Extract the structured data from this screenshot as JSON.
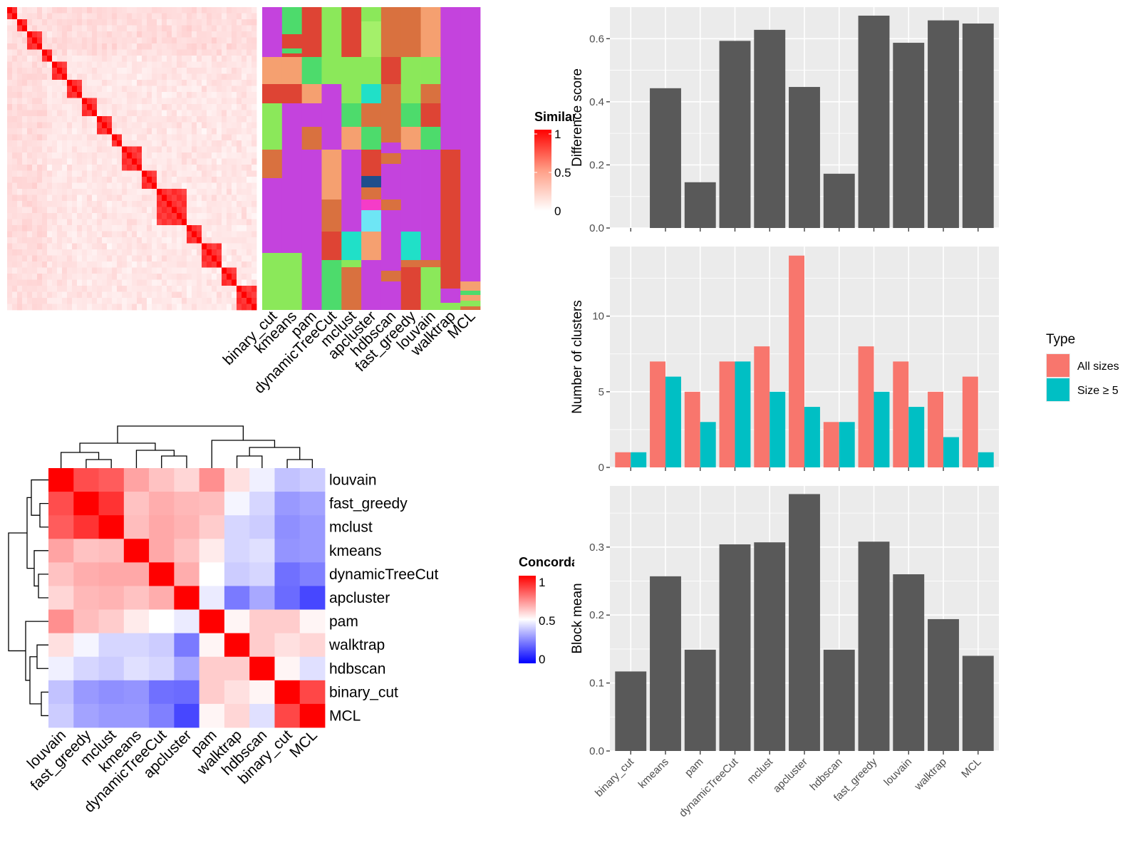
{
  "colors": {
    "panel_bg": "#ebebeb",
    "grid": "#ffffff",
    "bar_dark": "#595959",
    "all_sizes": "#f8766d",
    "size_ge5": "#00bfc4",
    "heat_high": "#ff0000",
    "heat_mid": "#ffffff",
    "heat_low": "#0000ff"
  },
  "similarity_heatmap": {
    "legend_title": "Similarity",
    "legend_ticks": [
      "1",
      "0.5",
      "0"
    ],
    "n": 50
  },
  "assignment_heatmap": {
    "columns": [
      "binary_cut",
      "kmeans",
      "pam",
      "dynamicTreeCut",
      "mclust",
      "apcluster",
      "hdbscan",
      "fast_greedy",
      "louvain",
      "walktrap",
      "MCL"
    ]
  },
  "concordance_heatmap": {
    "legend_title": "Concordance",
    "legend_ticks": [
      "1",
      "0.5",
      "0"
    ],
    "methods": [
      "louvain",
      "fast_greedy",
      "mclust",
      "kmeans",
      "dynamicTreeCut",
      "apcluster",
      "pam",
      "walktrap",
      "hdbscan",
      "binary_cut",
      "MCL"
    ],
    "matrix": [
      [
        1.0,
        0.85,
        0.82,
        0.68,
        0.62,
        0.58,
        0.72,
        0.56,
        0.47,
        0.38,
        0.4
      ],
      [
        0.85,
        1.0,
        0.9,
        0.62,
        0.66,
        0.64,
        0.63,
        0.48,
        0.42,
        0.3,
        0.32
      ],
      [
        0.82,
        0.9,
        1.0,
        0.63,
        0.67,
        0.65,
        0.6,
        0.42,
        0.4,
        0.28,
        0.3
      ],
      [
        0.68,
        0.62,
        0.63,
        1.0,
        0.67,
        0.62,
        0.54,
        0.42,
        0.44,
        0.29,
        0.3
      ],
      [
        0.62,
        0.66,
        0.67,
        0.67,
        1.0,
        0.66,
        0.5,
        0.4,
        0.42,
        0.22,
        0.25
      ],
      [
        0.58,
        0.64,
        0.65,
        0.62,
        0.66,
        1.0,
        0.46,
        0.24,
        0.33,
        0.21,
        0.14
      ],
      [
        0.72,
        0.63,
        0.6,
        0.54,
        0.5,
        0.46,
        1.0,
        0.52,
        0.6,
        0.6,
        0.52
      ],
      [
        0.56,
        0.48,
        0.42,
        0.42,
        0.4,
        0.24,
        0.52,
        1.0,
        0.6,
        0.56,
        0.58
      ],
      [
        0.47,
        0.42,
        0.4,
        0.44,
        0.42,
        0.33,
        0.6,
        0.6,
        1.0,
        0.52,
        0.44
      ],
      [
        0.38,
        0.3,
        0.28,
        0.29,
        0.22,
        0.21,
        0.6,
        0.56,
        0.52,
        1.0,
        0.86
      ],
      [
        0.4,
        0.32,
        0.3,
        0.3,
        0.25,
        0.14,
        0.52,
        0.58,
        0.44,
        0.86,
        1.0
      ]
    ]
  },
  "chart_data": [
    {
      "type": "bar",
      "categories": [
        "binary_cut",
        "kmeans",
        "pam",
        "dynamicTreeCut",
        "mclust",
        "apcluster",
        "hdbscan",
        "fast_greedy",
        "louvain",
        "walktrap",
        "MCL"
      ],
      "values": [
        0.0,
        0.443,
        0.145,
        0.593,
        0.628,
        0.447,
        0.172,
        0.673,
        0.587,
        0.658,
        0.648
      ],
      "title": "",
      "xlabel": "",
      "ylabel": "Difference score",
      "ylim": [
        0,
        0.7
      ],
      "yticks": [
        "0.0",
        "0.2",
        "0.4",
        "0.6"
      ],
      "grid": true
    },
    {
      "type": "bar",
      "categories": [
        "binary_cut",
        "kmeans",
        "pam",
        "dynamicTreeCut",
        "mclust",
        "apcluster",
        "hdbscan",
        "fast_greedy",
        "louvain",
        "walktrap",
        "MCL"
      ],
      "series": [
        {
          "name": "All sizes",
          "values": [
            1,
            7,
            5,
            7,
            8,
            14,
            3,
            8,
            7,
            5,
            6
          ]
        },
        {
          "name": "Size ≥ 5",
          "values": [
            1,
            6,
            3,
            7,
            5,
            4,
            3,
            5,
            4,
            2,
            1
          ]
        }
      ],
      "title": "",
      "xlabel": "",
      "ylabel": "Number of clusters",
      "ylim": [
        0,
        14.6
      ],
      "yticks": [
        "0",
        "5",
        "10"
      ],
      "legend_title": "Type",
      "legend_placement": "right",
      "grid": true
    },
    {
      "type": "bar",
      "categories": [
        "binary_cut",
        "kmeans",
        "pam",
        "dynamicTreeCut",
        "mclust",
        "apcluster",
        "hdbscan",
        "fast_greedy",
        "louvain",
        "walktrap",
        "MCL"
      ],
      "values": [
        0.117,
        0.257,
        0.149,
        0.304,
        0.307,
        0.378,
        0.149,
        0.308,
        0.26,
        0.194,
        0.14
      ],
      "title": "",
      "xlabel": "",
      "ylabel": "Block mean",
      "ylim": [
        0,
        0.39
      ],
      "yticks": [
        "0.0",
        "0.1",
        "0.2",
        "0.3"
      ],
      "grid": true
    }
  ]
}
